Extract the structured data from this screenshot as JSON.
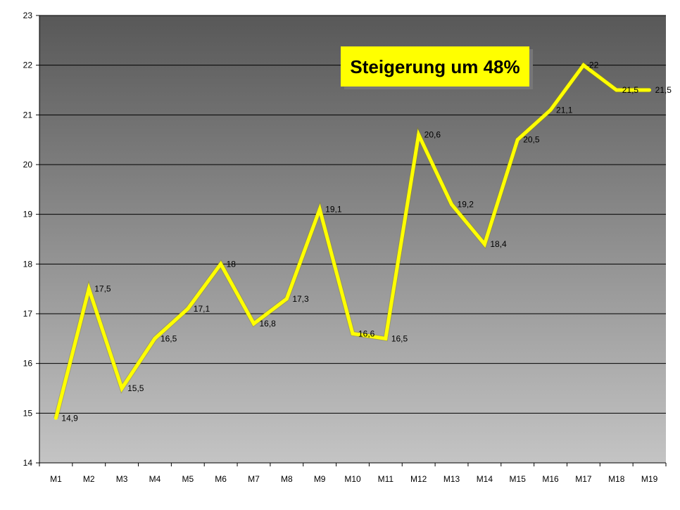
{
  "chart_data": {
    "type": "line",
    "title": "",
    "xlabel": "",
    "ylabel": "",
    "categories": [
      "M1",
      "M2",
      "M3",
      "M4",
      "M5",
      "M6",
      "M7",
      "M8",
      "M9",
      "M10",
      "M11",
      "M12",
      "M13",
      "M14",
      "M15",
      "M16",
      "M17",
      "M18",
      "M19"
    ],
    "series": [
      {
        "values": [
          14.9,
          17.5,
          15.5,
          16.5,
          17.1,
          18,
          16.8,
          17.3,
          19.1,
          16.6,
          16.5,
          20.6,
          19.2,
          18.4,
          20.5,
          21.1,
          22,
          21.5,
          21.5
        ],
        "data_labels": [
          "14,9",
          "17,5",
          "15,5",
          "16,5",
          "17,1",
          "18",
          "16,8",
          "17,3",
          "19,1",
          "16,6",
          "16,5",
          "20,6",
          "19,2",
          "18,4",
          "20,5",
          "21,1",
          "22",
          "21,5",
          "21,5"
        ],
        "color": "#ffff00"
      }
    ],
    "ylim": [
      14,
      23
    ],
    "yticks": [
      "14",
      "15",
      "16",
      "17",
      "18",
      "19",
      "20",
      "21",
      "22",
      "23"
    ],
    "grid": true,
    "background": {
      "top": "#585858",
      "bottom": "#c4c4c4"
    },
    "annotation": {
      "text": "Steigerung um 48%",
      "background": "#ffff00"
    }
  }
}
